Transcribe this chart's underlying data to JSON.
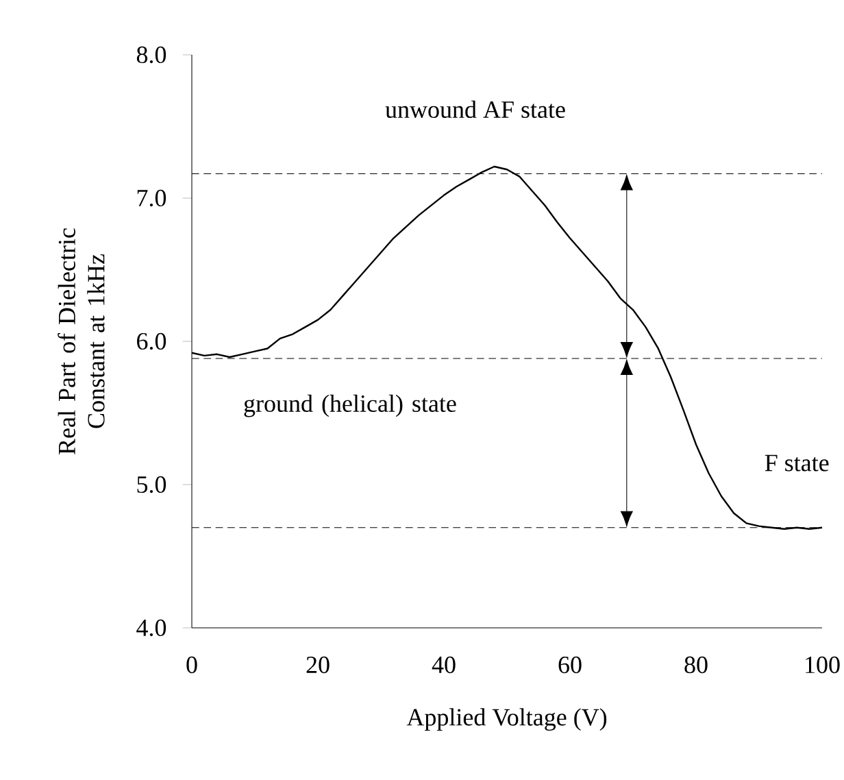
{
  "chart_data": {
    "type": "line",
    "xlabel": "Applied Voltage (V)",
    "ylabel": "Real Part of Dielectric Constant at 1kHz",
    "x": [
      0,
      2,
      4,
      6,
      8,
      10,
      12,
      14,
      16,
      18,
      20,
      22,
      24,
      26,
      28,
      30,
      32,
      34,
      36,
      38,
      40,
      42,
      44,
      46,
      48,
      50,
      52,
      54,
      56,
      58,
      60,
      62,
      64,
      66,
      68,
      70,
      72,
      74,
      76,
      78,
      80,
      82,
      84,
      86,
      88,
      90,
      92,
      94,
      96,
      98,
      100
    ],
    "series": [
      {
        "color": "#000000",
        "values": [
          5.92,
          5.9,
          5.91,
          5.89,
          5.91,
          5.93,
          5.95,
          6.02,
          6.05,
          6.1,
          6.15,
          6.22,
          6.32,
          6.42,
          6.52,
          6.62,
          6.72,
          6.8,
          6.88,
          6.95,
          7.02,
          7.08,
          7.13,
          7.18,
          7.22,
          7.2,
          7.15,
          7.05,
          6.95,
          6.83,
          6.72,
          6.62,
          6.52,
          6.42,
          6.3,
          6.22,
          6.1,
          5.95,
          5.75,
          5.52,
          5.28,
          5.08,
          4.92,
          4.8,
          4.73,
          4.71,
          4.7,
          4.69,
          4.7,
          4.69,
          4.7
        ]
      }
    ],
    "xlim": [
      0,
      100
    ],
    "xticks": [
      0,
      20,
      40,
      60,
      80,
      100
    ],
    "ylim": [
      4,
      8
    ],
    "yticks": [
      {
        "value": 4,
        "label": "4.0"
      },
      {
        "value": 5,
        "label": "5.0"
      },
      {
        "value": 6,
        "label": "6.0"
      },
      {
        "value": 7,
        "label": "7.0"
      },
      {
        "value": 8,
        "label": "8.0"
      }
    ],
    "ref_lines": [
      {
        "axis": "y",
        "value": 7.17,
        "line_style": "dashed",
        "color": "#000000"
      },
      {
        "axis": "y",
        "value": 5.88,
        "line_style": "dashed",
        "color": "#000000"
      },
      {
        "axis": "y",
        "value": 4.7,
        "line_style": "dashed",
        "color": "#000000"
      }
    ],
    "annotations": [
      "unwound AF state",
      "ground (helical) state",
      "F state"
    ],
    "grid": false,
    "marker": "none",
    "line_style": "solid"
  }
}
